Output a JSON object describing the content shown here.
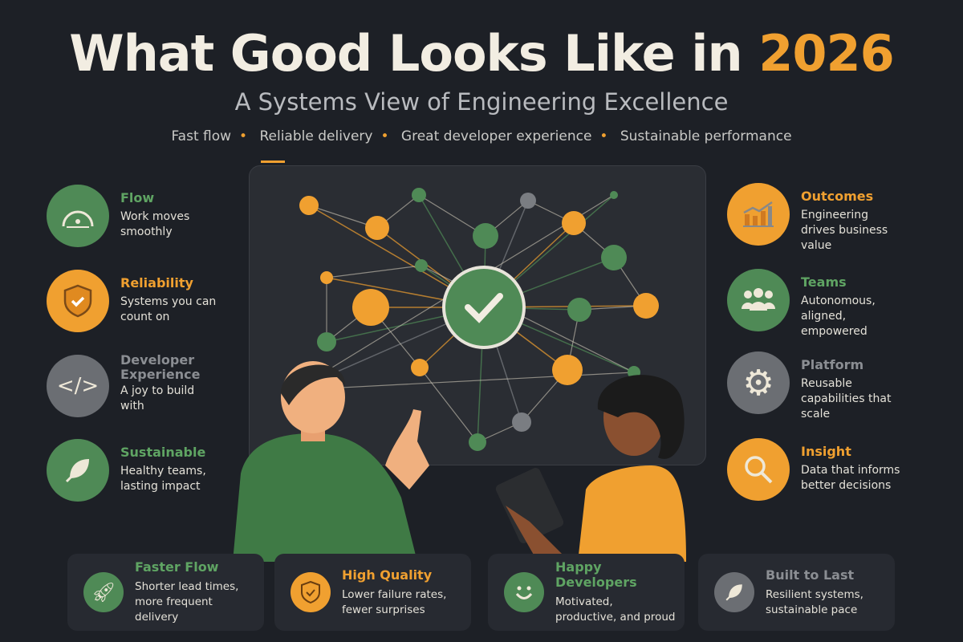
{
  "header": {
    "title_main": "What Good Looks Like in",
    "title_year": "2026",
    "subtitle": "A Systems View of Engineering Excellence",
    "tags": [
      "Fast flow",
      "Reliable delivery",
      "Great developer experience",
      "Sustainable performance"
    ]
  },
  "colors": {
    "background": "#1d2026",
    "green": "#4f8a56",
    "orange": "#f0a030",
    "gray": "#6b6e73"
  },
  "left": [
    {
      "title": "Flow",
      "desc": "Work moves smoothly",
      "icon": "speedometer-icon",
      "color": "green"
    },
    {
      "title": "Reliability",
      "desc": "Systems you can count on",
      "icon": "shield-check-icon",
      "color": "orange"
    },
    {
      "title": "Developer Experience",
      "desc": "A joy to build with",
      "icon": "code-icon",
      "color": "gray"
    },
    {
      "title": "Sustainable",
      "desc": "Healthy teams, lasting impact",
      "icon": "leaf-icon",
      "color": "green"
    }
  ],
  "right": [
    {
      "title": "Outcomes",
      "desc": "Engineering drives business value",
      "icon": "bar-chart-icon",
      "color": "orange"
    },
    {
      "title": "Teams",
      "desc": "Autonomous, aligned, empowered",
      "icon": "people-icon",
      "color": "green"
    },
    {
      "title": "Platform",
      "desc": "Reusable capabilities that scale",
      "icon": "gear-icon",
      "color": "gray"
    },
    {
      "title": "Insight",
      "desc": "Data that informs better decisions",
      "icon": "magnifier-icon",
      "color": "orange"
    }
  ],
  "cards": [
    {
      "title": "Faster Flow",
      "desc": "Shorter lead times, more frequent delivery",
      "icon": "rocket-icon",
      "color": "green"
    },
    {
      "title": "High Quality",
      "desc": "Lower failure rates, fewer surprises",
      "icon": "shield-check-icon",
      "color": "orange"
    },
    {
      "title": "Happy Developers",
      "desc": "Motivated, productive, and proud",
      "icon": "smiley-icon",
      "color": "green"
    },
    {
      "title": "Built to Last",
      "desc": "Resilient systems, sustainable pace",
      "icon": "leaf-icon",
      "color": "gray"
    }
  ]
}
